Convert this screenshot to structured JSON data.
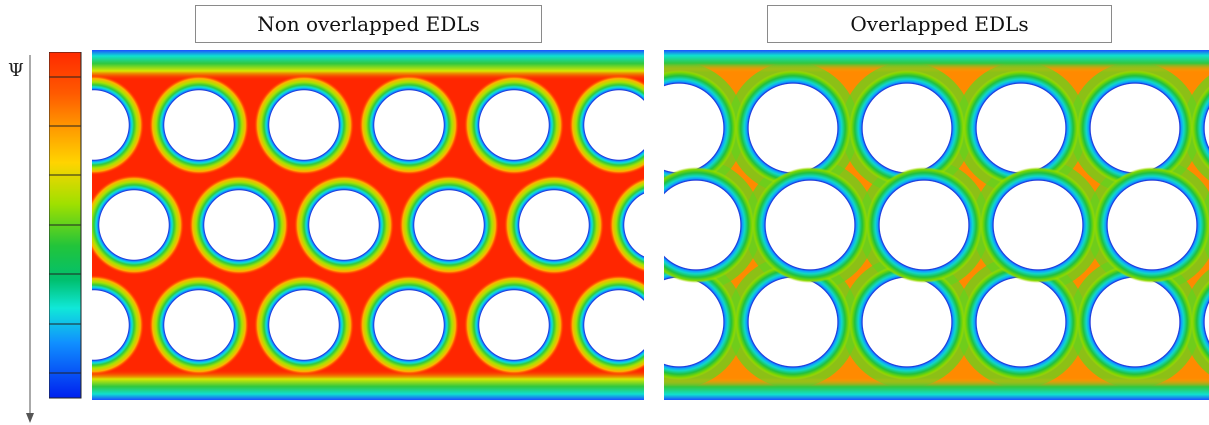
{
  "panels": [
    {
      "title": "Non overlapped EDLs",
      "field_intensity": 0.92,
      "pore_fraction": 0.28
    },
    {
      "title": "Overlapped EDLs",
      "field_intensity": 0.55,
      "pore_fraction": 0.42
    }
  ],
  "colorbar": {
    "label": "Ψ",
    "colors": [
      "#ff2a00",
      "#ff8a00",
      "#ffd400",
      "#9fe000",
      "#22c43a",
      "#00c070",
      "#10e8d8",
      "#1090ff",
      "#0020ee"
    ]
  }
}
